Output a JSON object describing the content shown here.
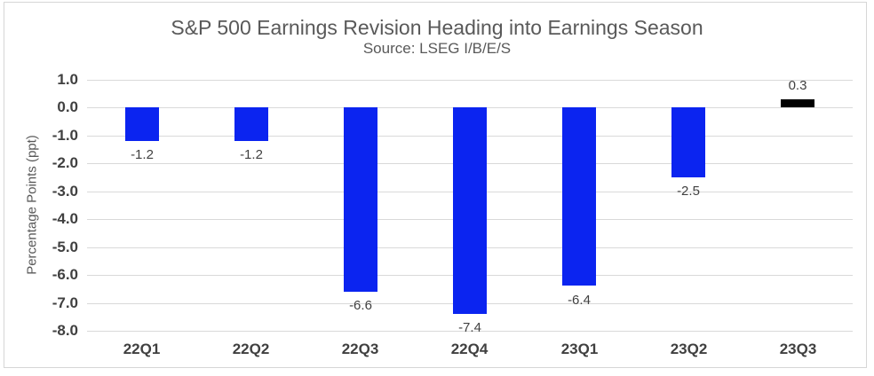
{
  "chart_data": {
    "type": "bar",
    "title": "S&P 500 Earnings Revision Heading into Earnings Season",
    "subtitle": "Source: LSEG I/B/E/S",
    "ylabel": "Percentage Points (ppt)",
    "categories": [
      "22Q1",
      "22Q2",
      "22Q3",
      "22Q4",
      "23Q1",
      "23Q2",
      "23Q3"
    ],
    "values": [
      -1.2,
      -1.2,
      -6.6,
      -7.4,
      -6.4,
      -2.5,
      0.3
    ],
    "value_labels": [
      "-1.2",
      "-1.2",
      "-6.6",
      "-7.4",
      "-6.4",
      "-2.5",
      "0.3"
    ],
    "yticks": [
      1.0,
      0.0,
      -1.0,
      -2.0,
      -3.0,
      -4.0,
      -5.0,
      -6.0,
      -7.0,
      -8.0
    ],
    "ytick_labels": [
      "1.0",
      "0.0",
      "-1.0",
      "-2.0",
      "-3.0",
      "-4.0",
      "-5.0",
      "-6.0",
      "-7.0",
      "-8.0"
    ],
    "ylim": [
      -8.0,
      1.0
    ],
    "grid": true,
    "legend": false,
    "bar_colors": [
      "#0B24F0",
      "#0B24F0",
      "#0B24F0",
      "#0B24F0",
      "#0B24F0",
      "#0B24F0",
      "#000000"
    ],
    "colors": {
      "default_bar": "#0B24F0",
      "last_bar": "#000000",
      "gridline": "#D9D9D9",
      "frame_border": "#D6D6D6",
      "title_text": "#595959",
      "axis_text": "#404040",
      "value_label_text": "#404040",
      "background": "#FFFFFF"
    }
  }
}
